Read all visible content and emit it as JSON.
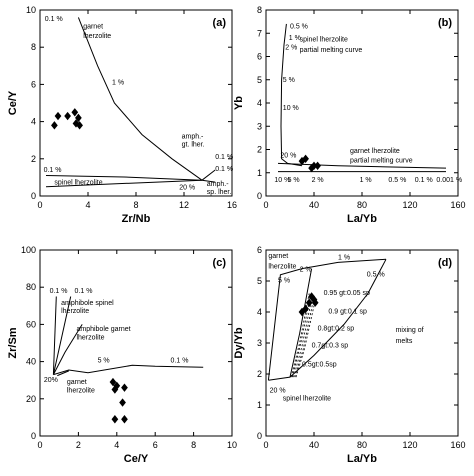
{
  "chart_data": [
    {
      "type": "scatter",
      "panel": "(a)",
      "xlabel": "Zr/Nb",
      "ylabel": "Ce/Y",
      "xlim": [
        0,
        16
      ],
      "ylim": [
        0,
        10
      ],
      "xticks": [
        "0",
        "4",
        "8",
        "12",
        "16"
      ],
      "yticks": [
        "0",
        "2",
        "4",
        "6",
        "8",
        "10"
      ],
      "series": [
        {
          "points": [
            [
              1.2,
              3.8
            ],
            [
              1.5,
              4.3
            ],
            [
              2.3,
              4.3
            ],
            [
              2.9,
              4.5
            ],
            [
              3.0,
              3.9
            ],
            [
              3.2,
              4.2
            ],
            [
              3.3,
              3.8
            ]
          ]
        }
      ],
      "curves": [
        {
          "points": [
            [
              3.2,
              9.6
            ],
            [
              4.8,
              7.0
            ],
            [
              6.2,
              5.0
            ],
            [
              8.5,
              3.3
            ],
            [
              11.0,
              2.0
            ],
            [
              13.5,
              0.85
            ]
          ]
        },
        {
          "points": [
            [
              0.5,
              1.1
            ],
            [
              7.0,
              1.02
            ],
            [
              13.5,
              0.85
            ]
          ]
        },
        {
          "points": [
            [
              0.5,
              0.5
            ],
            [
              13.5,
              0.85
            ]
          ]
        },
        {
          "points": [
            [
              13.5,
              0.85
            ],
            [
              14.6,
              1.4
            ]
          ]
        },
        {
          "points": [
            [
              13.5,
              0.85
            ],
            [
              14.6,
              0.75
            ]
          ]
        }
      ],
      "annotations": [
        {
          "text": "0.1 %",
          "x": 0.4,
          "y": 9.4
        },
        {
          "text": "garnet",
          "x": 3.6,
          "y": 9.0
        },
        {
          "text": "lherzolite",
          "x": 3.6,
          "y": 8.5
        },
        {
          "text": "1 %",
          "x": 6.0,
          "y": 6.0
        },
        {
          "text": "amph.-",
          "x": 11.8,
          "y": 3.1
        },
        {
          "text": "gt. lher.",
          "x": 11.8,
          "y": 2.65
        },
        {
          "text": "0.1 %",
          "x": 14.6,
          "y": 2.0
        },
        {
          "text": "0.1 %",
          "x": 0.3,
          "y": 1.3
        },
        {
          "text": "0.1 %",
          "x": 14.6,
          "y": 1.35
        },
        {
          "text": "spinel lherzolite",
          "x": 1.2,
          "y": 0.62
        },
        {
          "text": "amph.-",
          "x": 13.9,
          "y": 0.55
        },
        {
          "text": "20 %",
          "x": 11.6,
          "y": 0.35
        },
        {
          "text": "sp. lher.",
          "x": 13.9,
          "y": 0.1
        }
      ]
    },
    {
      "type": "scatter",
      "panel": "(b)",
      "xlabel": "La/Yb",
      "ylabel": "Yb",
      "xlim": [
        0,
        160
      ],
      "ylim": [
        0,
        8
      ],
      "xticks": [
        "0",
        "40",
        "80",
        "120",
        "160"
      ],
      "yticks": [
        "0",
        "1",
        "2",
        "3",
        "4",
        "5",
        "6",
        "7",
        "8"
      ],
      "series": [
        {
          "points": [
            [
              30,
              1.5
            ],
            [
              33,
              1.6
            ],
            [
              38,
              1.2
            ],
            [
              40,
              1.3
            ],
            [
              43,
              1.3
            ]
          ]
        }
      ],
      "curves": [
        {
          "points": [
            [
              17,
              7.4
            ],
            [
              15,
              6.5
            ],
            [
              13,
              5.0
            ],
            [
              12.5,
              3.0
            ],
            [
              13,
              1.6
            ],
            [
              18,
              1.4
            ],
            [
              30,
              1.3
            ]
          ]
        },
        {
          "points": [
            [
              10,
              1.4
            ],
            [
              60,
              1.3
            ],
            [
              100,
              1.25
            ],
            [
              150,
              1.2
            ]
          ]
        },
        {
          "points": [
            [
              10,
              1.05
            ],
            [
              150,
              1.05
            ]
          ]
        }
      ],
      "annotations": [
        {
          "text": "0.5 %",
          "x": 20,
          "y": 7.2
        },
        {
          "text": "1 %",
          "x": 19,
          "y": 6.7
        },
        {
          "text": "spinel lherzolite",
          "x": 28,
          "y": 6.65
        },
        {
          "text": "partial melting curve",
          "x": 28,
          "y": 6.2
        },
        {
          "text": "2 %",
          "x": 16,
          "y": 6.3
        },
        {
          "text": "5 %",
          "x": 14,
          "y": 4.9
        },
        {
          "text": "10 %",
          "x": 14,
          "y": 3.7
        },
        {
          "text": "20 %",
          "x": 12,
          "y": 1.65
        },
        {
          "text": "garnet lherzolite",
          "x": 70,
          "y": 1.85
        },
        {
          "text": "partial melting curve",
          "x": 70,
          "y": 1.45
        },
        {
          "text": "10 %",
          "x": 7,
          "y": 0.6
        },
        {
          "text": "5 %",
          "x": 18,
          "y": 0.6
        },
        {
          "text": "2 %",
          "x": 38,
          "y": 0.6
        },
        {
          "text": "1 %",
          "x": 78,
          "y": 0.6
        },
        {
          "text": "0.5 %",
          "x": 102,
          "y": 0.6
        },
        {
          "text": "0.1 %",
          "x": 124,
          "y": 0.6
        },
        {
          "text": "0.001 %",
          "x": 142,
          "y": 0.6
        }
      ]
    },
    {
      "type": "scatter",
      "panel": "(c)",
      "xlabel": "Ce/Y",
      "ylabel": "Zr/Sm",
      "xlim": [
        0,
        10
      ],
      "ylim": [
        0,
        100
      ],
      "xticks": [
        "0",
        "2",
        "4",
        "6",
        "8",
        "10"
      ],
      "yticks": [
        "0",
        "20",
        "40",
        "60",
        "80",
        "100"
      ],
      "series": [
        {
          "points": [
            [
              3.8,
              29
            ],
            [
              3.9,
              25
            ],
            [
              4.0,
              27
            ],
            [
              4.4,
              26
            ],
            [
              4.3,
              18
            ],
            [
              3.9,
              9
            ],
            [
              4.4,
              9
            ]
          ]
        }
      ],
      "curves": [
        {
          "points": [
            [
              0.7,
              33
            ],
            [
              0.85,
              75
            ]
          ]
        },
        {
          "points": [
            [
              0.7,
              33
            ],
            [
              1.6,
              75
            ]
          ]
        },
        {
          "points": [
            [
              0.7,
              33
            ],
            [
              1.3,
              45
            ],
            [
              2.2,
              60
            ]
          ]
        },
        {
          "points": [
            [
              0.7,
              33
            ],
            [
              1.5,
              35.5
            ],
            [
              2.5,
              34
            ],
            [
              4.8,
              38
            ],
            [
              6.0,
              37.5
            ],
            [
              8.5,
              37
            ]
          ]
        },
        {
          "points": [
            [
              0.9,
              32.5
            ],
            [
              1.5,
              35
            ]
          ]
        }
      ],
      "annotations": [
        {
          "text": "0.1 %",
          "x": 0.5,
          "y": 77
        },
        {
          "text": "0.1 %",
          "x": 1.8,
          "y": 77
        },
        {
          "text": "amphibole spinel",
          "x": 1.1,
          "y": 70.5
        },
        {
          "text": "lherzolite",
          "x": 1.1,
          "y": 66
        },
        {
          "text": "amphibole garnet",
          "x": 1.9,
          "y": 56.5
        },
        {
          "text": "lherzolite",
          "x": 1.9,
          "y": 52
        },
        {
          "text": "5 %",
          "x": 3.0,
          "y": 39.5
        },
        {
          "text": "0.1 %",
          "x": 6.8,
          "y": 39.5
        },
        {
          "text": "20%",
          "x": 0.2,
          "y": 29
        },
        {
          "text": "garnet",
          "x": 1.4,
          "y": 28
        },
        {
          "text": "lherzolite",
          "x": 1.4,
          "y": 23.5
        }
      ]
    },
    {
      "type": "scatter",
      "panel": "(d)",
      "xlabel": "La/Yb",
      "ylabel": "Dy/Yb",
      "xlim": [
        0,
        160
      ],
      "ylim": [
        0,
        6
      ],
      "xticks": [
        "0",
        "40",
        "80",
        "120",
        "160"
      ],
      "yticks": [
        "0",
        "1",
        "2",
        "3",
        "4",
        "5",
        "6"
      ],
      "series": [
        {
          "points": [
            [
              30,
              4.0
            ],
            [
              33,
              4.1
            ],
            [
              36,
              4.3
            ],
            [
              38,
              4.5
            ],
            [
              40,
              4.4
            ],
            [
              41,
              4.3
            ]
          ]
        }
      ],
      "curves": [
        {
          "points": [
            [
              2,
              1.8
            ],
            [
              12,
              5.2
            ],
            [
              30,
              5.4
            ],
            [
              60,
              5.6
            ],
            [
              100,
              5.7
            ]
          ]
        },
        {
          "points": [
            [
              2,
              1.8
            ],
            [
              20,
              1.9
            ],
            [
              40,
              2.6
            ],
            [
              65,
              3.6
            ],
            [
              85,
              4.6
            ],
            [
              100,
              5.7
            ]
          ]
        },
        {
          "points": [
            [
              20,
              1.9
            ],
            [
              28,
              3.3
            ],
            [
              38,
              5.4
            ]
          ]
        }
      ],
      "dashed_curves": [
        {
          "points": [
            [
              21,
              1.9
            ],
            [
              28,
              3.0
            ],
            [
              36,
              4.6
            ]
          ]
        },
        {
          "points": [
            [
              22,
              1.9
            ],
            [
              29,
              3.0
            ],
            [
              37,
              4.5
            ]
          ]
        },
        {
          "points": [
            [
              23,
              1.9
            ],
            [
              30,
              2.9
            ],
            [
              38,
              4.4
            ]
          ]
        },
        {
          "points": [
            [
              24,
              1.9
            ],
            [
              31,
              2.8
            ],
            [
              39,
              4.3
            ]
          ]
        },
        {
          "points": [
            [
              25,
              1.9
            ],
            [
              32,
              2.8
            ],
            [
              40,
              4.2
            ]
          ]
        }
      ],
      "annotations": [
        {
          "text": "garnet",
          "x": 2,
          "y": 5.75
        },
        {
          "text": "lherzolite",
          "x": 2,
          "y": 5.4
        },
        {
          "text": "5 %",
          "x": 10,
          "y": 4.95
        },
        {
          "text": "2 %",
          "x": 28,
          "y": 5.3
        },
        {
          "text": "1 %",
          "x": 60,
          "y": 5.7
        },
        {
          "text": "0.5 %",
          "x": 84,
          "y": 5.15
        },
        {
          "text": "0.95 gt:0.05 sp",
          "x": 48,
          "y": 4.55
        },
        {
          "text": "0.9 gt:0.1 sp",
          "x": 52,
          "y": 3.95
        },
        {
          "text": "0.8gt:0.2 sp",
          "x": 43,
          "y": 3.4
        },
        {
          "text": "0.7gt:0.3 sp",
          "x": 38,
          "y": 2.85
        },
        {
          "text": "0.5gt:0.5sp",
          "x": 30,
          "y": 2.25
        },
        {
          "text": "mixing of",
          "x": 108,
          "y": 3.35
        },
        {
          "text": "melts",
          "x": 108,
          "y": 3.0
        },
        {
          "text": "20 %",
          "x": 3,
          "y": 1.4
        },
        {
          "text": "spinel lherzolite",
          "x": 14,
          "y": 1.15
        }
      ]
    }
  ]
}
